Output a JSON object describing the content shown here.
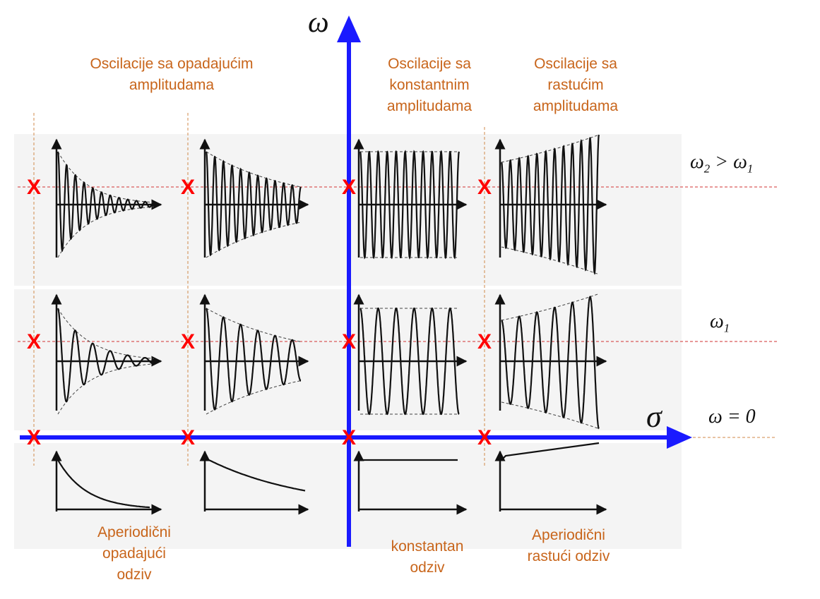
{
  "axes": {
    "vertical_symbol": "ω",
    "horizontal_symbol": "σ"
  },
  "region_labels": {
    "decaying": [
      "Oscilacije sa opadajućim",
      "amplitudama"
    ],
    "constant": [
      "Oscilacije sa",
      "konstantnim",
      "amplitudama"
    ],
    "growing": [
      "Oscilacije sa",
      "rastućim",
      "amplitudama"
    ],
    "aperiodic_decaying": [
      "Aperiodični",
      "opadajući",
      "odziv"
    ],
    "constant_response": [
      "konstantan",
      "odziv"
    ],
    "aperiodic_growing": [
      "Aperiodični",
      "rastući odziv"
    ]
  },
  "row_labels": {
    "omega2": {
      "a": "ω",
      "a_sub": "2",
      "rel": " > ω",
      "b_sub": "1"
    },
    "omega1": {
      "a": "ω",
      "a_sub": "1"
    },
    "zero": "ω = 0"
  },
  "pole_marker": "X",
  "colors": {
    "axis": "#1a1aff",
    "text": "#c8651b",
    "marker": "#ff0000",
    "guide": "#d23232",
    "vguide": "#d08a4a"
  }
}
